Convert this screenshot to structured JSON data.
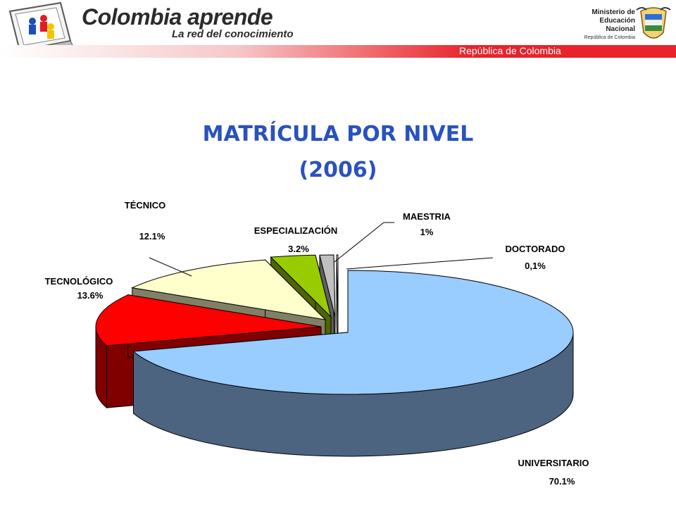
{
  "header": {
    "brand_title": "Colombia aprende",
    "brand_subtitle": "La red del conocimiento",
    "ministry_line1": "Ministerio de",
    "ministry_line2": "Educación",
    "ministry_line3": "Nacional",
    "ministry_line4": "República de Colombia",
    "republic_band": "República de Colombia",
    "colors": {
      "band": "#e8232a",
      "brand": "#2b2b2b"
    }
  },
  "chart_data": {
    "type": "pie",
    "title_line1": "MATRÍCULA POR NIVEL",
    "title_line2": "(2006)",
    "style": "3d-exploded",
    "slices": [
      {
        "name": "UNIVERSITARIO",
        "value": 70.1,
        "label_value": "70.1%",
        "color": "#99ccff",
        "side_color": "#4d6480"
      },
      {
        "name": "TECNOLÓGICO",
        "value": 13.6,
        "label_value": "13.6%",
        "color": "#ff0000",
        "side_color": "#800000"
      },
      {
        "name": "TÉCNICO",
        "value": 12.1,
        "label_value": "12.1%",
        "color": "#ffffcc",
        "side_color": "#808066"
      },
      {
        "name": "ESPECIALIZACIÓN",
        "value": 3.2,
        "label_value": "3.2%",
        "color": "#99cc00",
        "side_color": "#4d6600"
      },
      {
        "name": "MAESTRIA",
        "value": 1.0,
        "label_value": "1%",
        "color": "#c0c0c0",
        "side_color": "#606060"
      },
      {
        "name": "DOCTORADO",
        "value": 0.1,
        "label_value": "0,1%",
        "color": "#ffffff",
        "side_color": "#808080"
      }
    ]
  }
}
